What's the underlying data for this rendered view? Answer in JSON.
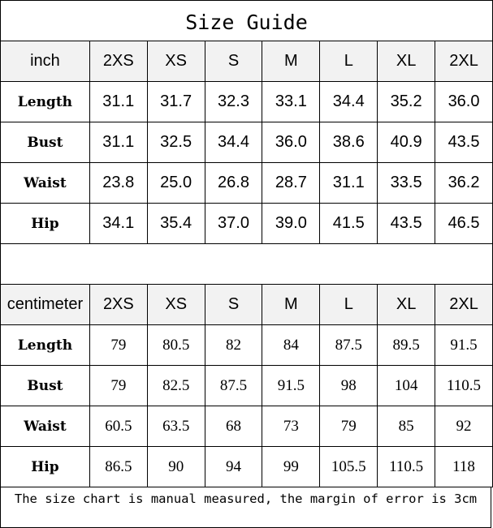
{
  "title": "Size Guide",
  "sizes": [
    "2XS",
    "XS",
    "S",
    "M",
    "L",
    "XL",
    "2XL"
  ],
  "inch": {
    "unit": "inch",
    "rows": [
      {
        "label": "Length",
        "values": [
          "31.1",
          "31.7",
          "32.3",
          "33.1",
          "34.4",
          "35.2",
          "36.0"
        ]
      },
      {
        "label": "Bust",
        "values": [
          "31.1",
          "32.5",
          "34.4",
          "36.0",
          "38.6",
          "40.9",
          "43.5"
        ]
      },
      {
        "label": "Waist",
        "values": [
          "23.8",
          "25.0",
          "26.8",
          "28.7",
          "31.1",
          "33.5",
          "36.2"
        ]
      },
      {
        "label": "Hip",
        "values": [
          "34.1",
          "35.4",
          "37.0",
          "39.0",
          "41.5",
          "43.5",
          "46.5"
        ]
      }
    ]
  },
  "centimeter": {
    "unit": "centimeter",
    "rows": [
      {
        "label": "Length",
        "values": [
          "79",
          "80.5",
          "82",
          "84",
          "87.5",
          "89.5",
          "91.5"
        ]
      },
      {
        "label": "Bust",
        "values": [
          "79",
          "82.5",
          "87.5",
          "91.5",
          "98",
          "104",
          "110.5"
        ]
      },
      {
        "label": "Waist",
        "values": [
          "60.5",
          "63.5",
          "68",
          "73",
          "79",
          "85",
          "92"
        ]
      },
      {
        "label": "Hip",
        "values": [
          "86.5",
          "90",
          "94",
          "99",
          "105.5",
          "110.5",
          "118"
        ]
      }
    ]
  },
  "footer": "The size chart is manual measured, the margin of error is 3cm"
}
